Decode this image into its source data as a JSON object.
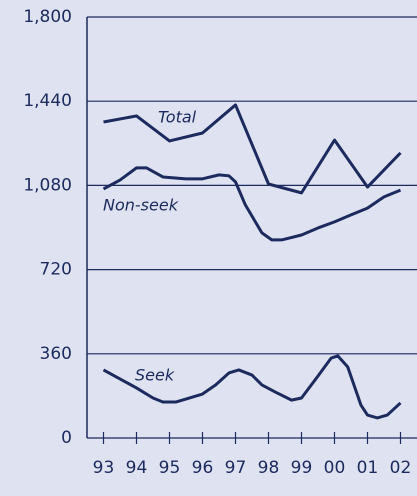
{
  "chart_data": {
    "type": "line",
    "xlim": [
      92.5,
      102.5
    ],
    "xticks": [
      93,
      94,
      95,
      96,
      97,
      98,
      99,
      {
        "value": 100,
        "label": "00"
      },
      {
        "value": 101,
        "label": "01"
      },
      {
        "value": 102,
        "label": "02"
      }
    ],
    "ylim": [
      0,
      1800
    ],
    "yticks": [
      0,
      360,
      720,
      {
        "value": 1080,
        "label": "1,080"
      },
      {
        "value": 1440,
        "label": "1,440"
      },
      {
        "value": 1800,
        "label": "1,800"
      }
    ],
    "grid": true,
    "series": [
      {
        "name": "Total",
        "color": "#1c2a5e",
        "x": [
          93,
          94,
          95,
          96,
          97,
          98,
          99,
          100,
          101,
          102
        ],
        "values": [
          1351,
          1377,
          1270,
          1304,
          1424,
          1086,
          1048,
          1274,
          1073,
          1219
        ]
      },
      {
        "name": "Non-seek",
        "color": "#1c2a5e",
        "x": [
          93,
          93.5,
          94,
          94.3,
          94.8,
          95.5,
          96,
          96.5,
          96.8,
          97,
          97.3,
          97.8,
          98.1,
          98.4,
          99,
          99.5,
          100,
          100.5,
          101,
          101.5,
          102
        ],
        "values": [
          1065,
          1103,
          1155,
          1155,
          1116,
          1108,
          1108,
          1125,
          1121,
          1095,
          996,
          877,
          847,
          847,
          868,
          898,
          924,
          954,
          983,
          1031,
          1060
        ]
      },
      {
        "name": "Seek",
        "color": "#1c2a5e",
        "x": [
          93,
          94,
          94.5,
          94.8,
          95.2,
          95.6,
          96,
          96.4,
          96.8,
          97.1,
          97.5,
          97.8,
          98.2,
          98.7,
          99,
          99.5,
          99.9,
          100.1,
          100.4,
          100.8,
          101,
          101.3,
          101.6,
          102
        ],
        "values": [
          291,
          214,
          171,
          154,
          154,
          171,
          188,
          227,
          278,
          291,
          269,
          227,
          197,
          162,
          171,
          265,
          342,
          351,
          304,
          141,
          98,
          86,
          98,
          150
        ]
      }
    ]
  }
}
